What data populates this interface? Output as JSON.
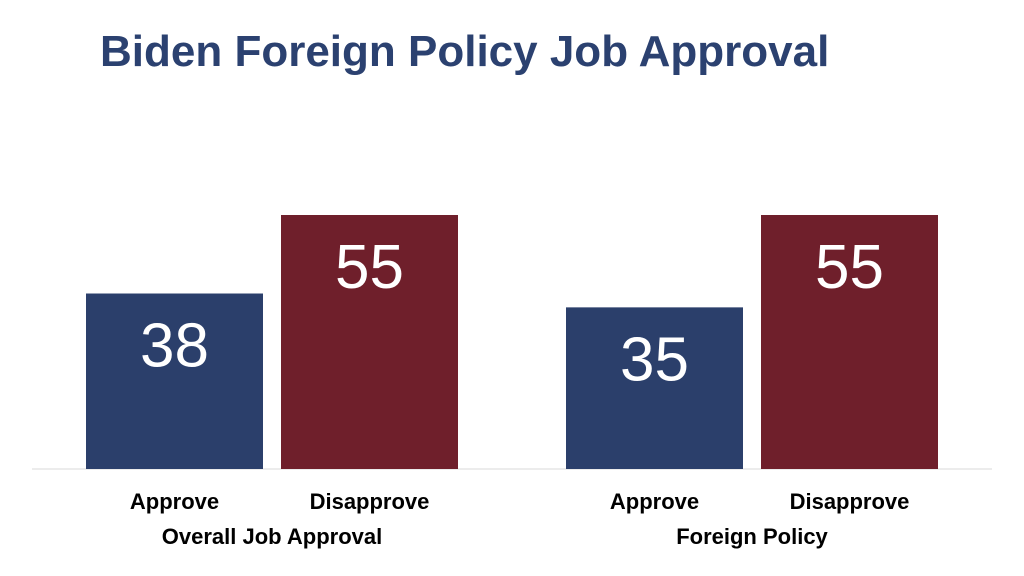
{
  "chart_data": {
    "type": "bar",
    "title": "Biden Foreign Policy Job Approval",
    "groups": [
      {
        "label": "Overall Job Approval",
        "bars": [
          {
            "category": "Approve",
            "value": 38
          },
          {
            "category": "Disapprove",
            "value": 55
          }
        ]
      },
      {
        "label": "Foreign Policy",
        "bars": [
          {
            "category": "Approve",
            "value": 35
          },
          {
            "category": "Disapprove",
            "value": 55
          }
        ]
      }
    ],
    "ylim": [
      0,
      55
    ],
    "grid": false,
    "legend": "none"
  },
  "colors": {
    "title": "#2b4170",
    "approve": "#2b3f6b",
    "disapprove": "#6f1f2b",
    "baseline": "#d9d9d9",
    "value_text": "#ffffff"
  }
}
